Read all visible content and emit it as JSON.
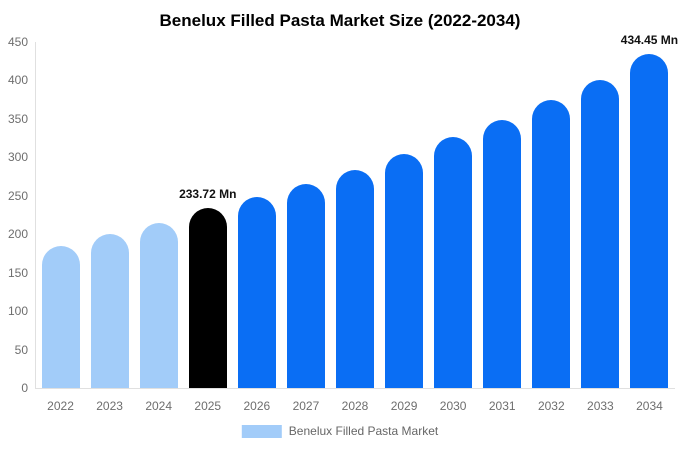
{
  "title": "Benelux Filled Pasta Market Size (2022-2034)",
  "colors": {
    "historical_bar": "#a2ccf9",
    "highlight_bar": "#000000",
    "forecast_bar": "#0a6ef4",
    "axis_line": "#e0e0e0",
    "tick_text": "#6e6e6e",
    "legend_text": "#666666",
    "data_label_text": "#111111"
  },
  "chart_data": {
    "type": "bar",
    "title": "Benelux Filled Pasta Market Size (2022-2034)",
    "categories": [
      "2022",
      "2023",
      "2024",
      "2025",
      "2026",
      "2027",
      "2028",
      "2029",
      "2030",
      "2031",
      "2032",
      "2033",
      "2034"
    ],
    "values": [
      185,
      200,
      214,
      233.72,
      248,
      265,
      284,
      304,
      326,
      349,
      374,
      401,
      434.45
    ],
    "unit": "Mn",
    "xlabel": "",
    "ylabel": "",
    "ylim": [
      0,
      450
    ],
    "yticks": [
      0,
      50,
      100,
      150,
      200,
      250,
      300,
      350,
      400,
      450
    ],
    "grid": false,
    "bar_colors": [
      "#a2ccf9",
      "#a2ccf9",
      "#a2ccf9",
      "#000000",
      "#0a6ef4",
      "#0a6ef4",
      "#0a6ef4",
      "#0a6ef4",
      "#0a6ef4",
      "#0a6ef4",
      "#0a6ef4",
      "#0a6ef4",
      "#0a6ef4"
    ],
    "data_labels": [
      {
        "category": "2025",
        "text": "233.72 Mn"
      },
      {
        "category": "2034",
        "text": "434.45 Mn"
      }
    ],
    "legend": [
      {
        "label": "Benelux Filled Pasta Market",
        "swatch_color": "#a2ccf9"
      }
    ],
    "legend_position": "bottom-center"
  }
}
